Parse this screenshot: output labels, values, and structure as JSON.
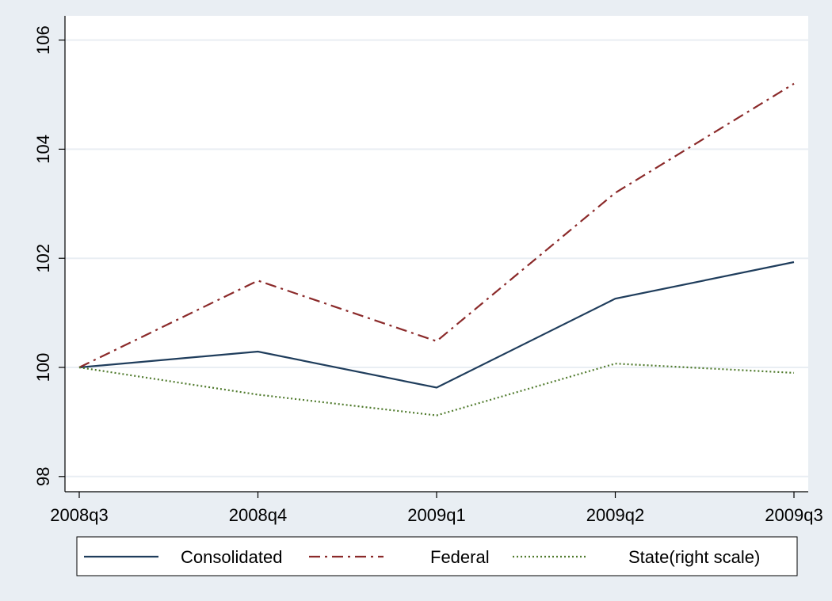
{
  "colors": {
    "outer_bg": "#e9eef3",
    "plot_bg": "#ffffff",
    "grid": "#e9eef3",
    "axis": "#000000"
  },
  "chart_data": {
    "type": "line",
    "title": "",
    "xlabel": "",
    "ylabel": "",
    "categories": [
      "2008q3",
      "2008q4",
      "2009q1",
      "2009q2",
      "2009q3"
    ],
    "y_ticks": [
      98,
      100,
      102,
      104,
      106
    ],
    "ylim": [
      97.8,
      106.4
    ],
    "grid": true,
    "legend_position": "bottom",
    "series": [
      {
        "name": "Consolidated",
        "color": "#1f3d5c",
        "dash": "solid",
        "values": [
          100,
          100.29,
          99.63,
          101.26,
          101.93
        ]
      },
      {
        "name": "Federal",
        "color": "#8b2a2a",
        "dash": "dashdot",
        "values": [
          100,
          101.59,
          100.48,
          103.2,
          105.2
        ]
      },
      {
        "name": "State(right scale)",
        "color": "#4f7a2c",
        "dash": "dotted",
        "values": [
          100,
          99.5,
          99.12,
          100.07,
          99.9
        ]
      }
    ]
  }
}
